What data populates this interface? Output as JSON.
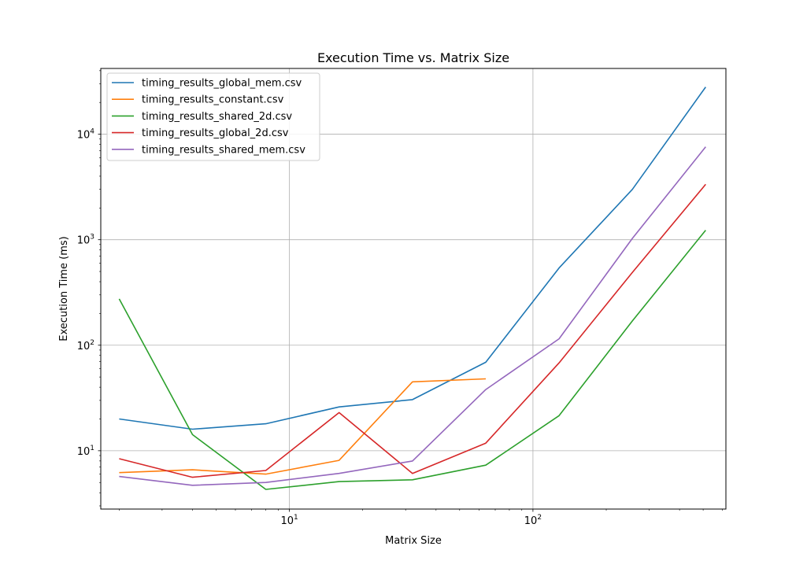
{
  "chart_data": {
    "type": "line",
    "title": "Execution Time vs. Matrix Size",
    "xlabel": "Matrix Size",
    "ylabel": "Execution Time (ms)",
    "xscale": "log",
    "yscale": "log",
    "xlim": [
      1.68,
      620
    ],
    "ylim": [
      2.8,
      42000
    ],
    "grid": true,
    "legend_position": "top-left",
    "x_ticks": [
      {
        "value": 10,
        "base": "10",
        "exp": "1"
      },
      {
        "value": 100,
        "base": "10",
        "exp": "2"
      }
    ],
    "y_ticks": [
      {
        "value": 10,
        "base": "10",
        "exp": "1"
      },
      {
        "value": 100,
        "base": "10",
        "exp": "2"
      },
      {
        "value": 1000,
        "base": "10",
        "exp": "3"
      },
      {
        "value": 10000,
        "base": "10",
        "exp": "4"
      }
    ],
    "series": [
      {
        "name": "timing_results_global_mem.csv",
        "color": "#1f77b4",
        "x": [
          2,
          4,
          8,
          16,
          32,
          64,
          128,
          256,
          512
        ],
        "y": [
          20,
          16,
          18,
          26,
          30.5,
          69,
          540,
          3000,
          28000
        ]
      },
      {
        "name": "timing_results_constant.csv",
        "color": "#ff7f0e",
        "x": [
          2,
          4,
          8,
          16,
          32,
          64
        ],
        "y": [
          6.2,
          6.6,
          6.0,
          8.1,
          45,
          48
        ]
      },
      {
        "name": "timing_results_shared_2d.csv",
        "color": "#2ca02c",
        "x": [
          2,
          4,
          8,
          16,
          32,
          64,
          128,
          256,
          512
        ],
        "y": [
          275,
          14.2,
          4.3,
          5.1,
          5.3,
          7.3,
          21.5,
          170,
          1230
        ]
      },
      {
        "name": "timing_results_global_2d.csv",
        "color": "#d62728",
        "x": [
          2,
          4,
          8,
          16,
          32,
          64,
          128,
          256,
          512
        ],
        "y": [
          8.4,
          5.6,
          6.5,
          23,
          6.1,
          11.8,
          68,
          490,
          3350
        ]
      },
      {
        "name": "timing_results_shared_mem.csv",
        "color": "#9467bd",
        "x": [
          2,
          4,
          8,
          16,
          32,
          64,
          128,
          256,
          512
        ],
        "y": [
          5.7,
          4.7,
          5.0,
          6.1,
          8.0,
          38,
          115,
          1030,
          7600
        ]
      }
    ]
  }
}
